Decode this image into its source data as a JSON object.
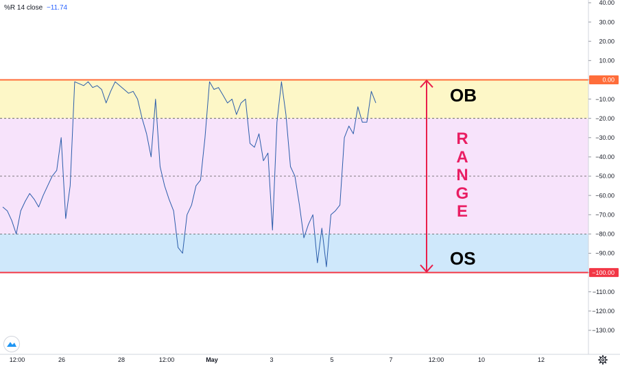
{
  "legend": {
    "name": "%R",
    "period": "14",
    "source": "close",
    "value": "−11.74"
  },
  "colors": {
    "line": "#2a5caa",
    "ob_zone": "#fdf7c7",
    "range_zone": "#f7e3fb",
    "os_zone": "#cfe8fb",
    "zero_line": "#ff6d3a",
    "minus100_line": "#f23645",
    "arrow": "#e91e4a",
    "range_text": "#e91e63"
  },
  "annotations": {
    "ob": "OB",
    "os": "OS",
    "range_letters": [
      "R",
      "A",
      "N",
      "G",
      "E"
    ]
  },
  "chart_data": {
    "type": "line",
    "series": [
      {
        "name": "%R",
        "values": [
          -66,
          -68,
          -73,
          -80,
          -68,
          -63,
          -59,
          -62,
          -66,
          -60,
          -55,
          -50,
          -47,
          -30,
          -72,
          -55,
          -1,
          -2,
          -3,
          -1,
          -4,
          -3,
          -5,
          -12,
          -6,
          -1,
          -3,
          -5,
          -7,
          -6,
          -10,
          -20,
          -28,
          -40,
          -10,
          -45,
          -55,
          -62,
          -68,
          -87,
          -90,
          -70,
          -65,
          -55,
          -52,
          -30,
          -1,
          -5,
          -4,
          -8,
          -12,
          -10,
          -18,
          -12,
          -10,
          -33,
          -35,
          -28,
          -42,
          -38,
          -78,
          -22,
          -1,
          -18,
          -45,
          -50,
          -65,
          -82,
          -75,
          -70,
          -95,
          -77,
          -97,
          -70,
          -68,
          -65,
          -30,
          -24,
          -28,
          -14,
          -22,
          -22,
          -6,
          -12
        ]
      }
    ],
    "ylim": [
      -135,
      40
    ],
    "y_ticks": [
      "40.00",
      "30.00",
      "20.00",
      "10.00",
      "0.00",
      "-10.00",
      "-20.00",
      "-30.00",
      "-40.00",
      "-50.00",
      "-60.00",
      "-70.00",
      "-80.00",
      "-90.00",
      "-100.00",
      "-110.00",
      "-120.00",
      "-130.00"
    ],
    "x_ticks": [
      "12:00",
      "26",
      "28",
      "12:00",
      "May",
      "3",
      "5",
      "7",
      "12:00",
      "10",
      "12"
    ],
    "levels": {
      "overbought": -20,
      "middle": -50,
      "oversold": -80,
      "top": 0,
      "bottom": -100
    },
    "highlighted_labels": [
      "0.00",
      "-100.00"
    ]
  }
}
